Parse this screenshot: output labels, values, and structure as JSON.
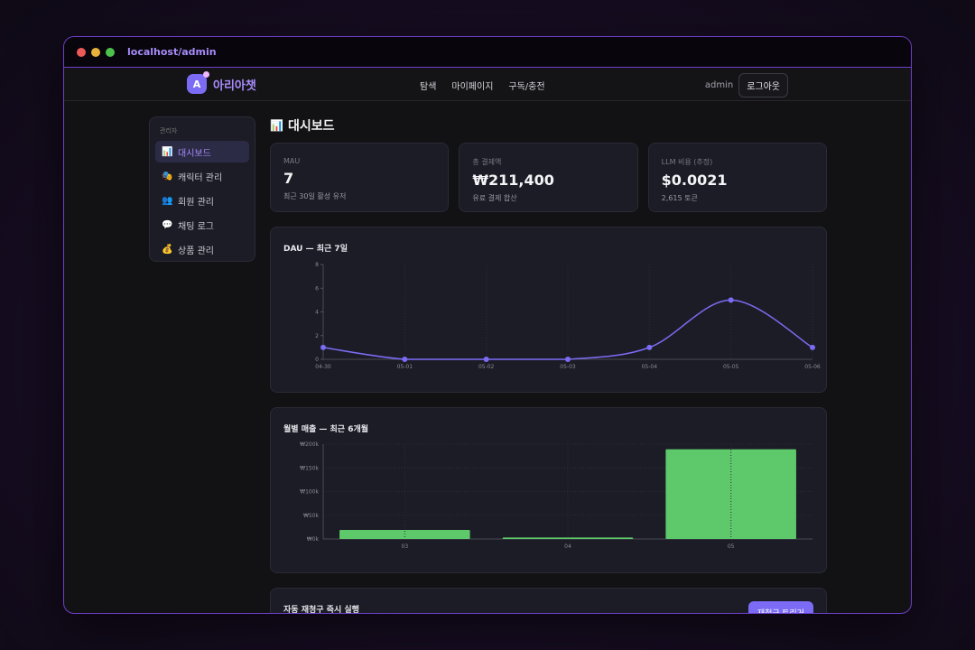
{
  "browser": {
    "url": "localhost/admin"
  },
  "nav": {
    "brand": "아리아챗",
    "links": [
      "탐색",
      "마이페이지",
      "구독/충전"
    ],
    "user": "admin",
    "logout_label": "로그아웃"
  },
  "sidebar": {
    "heading": "관리자",
    "items": [
      {
        "icon": "📊",
        "label": "대시보드",
        "active": true
      },
      {
        "icon": "🎭",
        "label": "캐릭터 관리"
      },
      {
        "icon": "👥",
        "label": "회원 관리"
      },
      {
        "icon": "💬",
        "label": "채팅 로그"
      },
      {
        "icon": "💰",
        "label": "상품 관리"
      }
    ]
  },
  "page": {
    "title_icon": "📊",
    "title": "대시보드"
  },
  "stats": [
    {
      "label": "MAU",
      "value": "7",
      "sub": "최근 30일 활성 유저"
    },
    {
      "label": "총 결제액",
      "value": "₩211,400",
      "sub": "유료 결제 합산"
    },
    {
      "label": "LLM 비용 (추정)",
      "value": "$0.0021",
      "sub": "2,615 토큰"
    }
  ],
  "dau_chart": {
    "title": "DAU — 최근 7일",
    "chart_data": {
      "type": "line",
      "x": [
        "04-30",
        "05-01",
        "05-02",
        "05-03",
        "05-04",
        "05-05",
        "05-06"
      ],
      "values": [
        1,
        0,
        0,
        0,
        1,
        5,
        1
      ],
      "ylim": [
        0,
        8
      ],
      "yticks": [
        "0",
        "2",
        "4",
        "6",
        "8"
      ],
      "color": "#7c6cf5"
    }
  },
  "revenue_chart": {
    "title": "월별 매출 — 최근 6개월",
    "chart_data": {
      "type": "bar",
      "categories": [
        "03",
        "04",
        "05"
      ],
      "values": [
        19000,
        3000,
        189400
      ],
      "ylim": [
        0,
        200000
      ],
      "yticks": [
        "₩0k",
        "₩50k",
        "₩100k",
        "₩150k",
        "₩200k"
      ],
      "color": "#5ec96a"
    }
  },
  "auto_billing": {
    "title": "자동 재청구 즉시 실행",
    "button_label": "재청구 트리거"
  }
}
